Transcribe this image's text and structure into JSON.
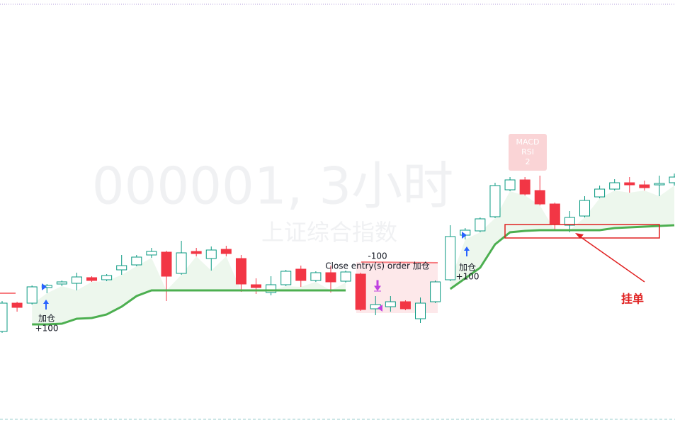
{
  "chart_data": {
    "type": "candlestick",
    "open": [
      132,
      172,
      172,
      194,
      199,
      200,
      208,
      205,
      219,
      226,
      240,
      244,
      214,
      245,
      235,
      248,
      235,
      198,
      187,
      198,
      220,
      204,
      215,
      203,
      213,
      164,
      167,
      174,
      150,
      174,
      205,
      268,
      274,
      294,
      332,
      346,
      331,
      312,
      282,
      295,
      322,
      333,
      342,
      339,
      339,
      342
    ],
    "close": [
      172,
      166,
      195,
      197,
      202,
      209,
      204,
      211,
      225,
      237,
      245,
      210,
      243,
      242,
      247,
      242,
      199,
      194,
      198,
      217,
      204,
      215,
      202,
      216,
      163,
      170,
      174,
      164,
      172,
      202,
      266,
      275,
      291,
      338,
      346,
      326,
      312,
      284,
      293,
      317,
      333,
      342,
      339,
      335,
      341,
      350
    ],
    "high": [
      175,
      174,
      197,
      199,
      204,
      215,
      210,
      213,
      240,
      240,
      250,
      246,
      260,
      250,
      252,
      253,
      240,
      207,
      210,
      219,
      225,
      217,
      225,
      218,
      215,
      182,
      182,
      176,
      180,
      204,
      282,
      278,
      293,
      342,
      350,
      350,
      352,
      314,
      302,
      323,
      338,
      347,
      350,
      345,
      352,
      355
    ],
    "low": [
      130,
      160,
      170,
      186,
      196,
      190,
      202,
      203,
      212,
      224,
      236,
      175,
      212,
      238,
      218,
      238,
      188,
      185,
      183,
      196,
      195,
      202,
      187,
      201,
      161,
      155,
      160,
      162,
      144,
      172,
      203,
      262,
      272,
      292,
      330,
      324,
      310,
      275,
      272,
      293,
      320,
      331,
      328,
      331,
      323,
      338
    ],
    "up_color": "#089981",
    "down_color": "#f23645",
    "stop_line": {
      "color": "#4caf50",
      "values": [
        null,
        null,
        142,
        142,
        143,
        150,
        151,
        156,
        167,
        182,
        190,
        190,
        190,
        190,
        190,
        190,
        190,
        190,
        190,
        190,
        190,
        190,
        190,
        190,
        null,
        null,
        null,
        null,
        null,
        null,
        192,
        207,
        222,
        255,
        272,
        274,
        275,
        275,
        275,
        275,
        275,
        278,
        279,
        280,
        281,
        282
      ]
    },
    "ylim": [
      -17,
      600
    ],
    "watermark": {
      "title": "000001, 3小时",
      "subtitle": "上证综合指数"
    },
    "indicator_tag": [
      "MACD",
      "RSI",
      "2"
    ],
    "annotations": [
      "加仓",
      "+100",
      "-100",
      "Close entry(s) order 加仓",
      "加仓",
      "+100",
      "挂单"
    ]
  }
}
